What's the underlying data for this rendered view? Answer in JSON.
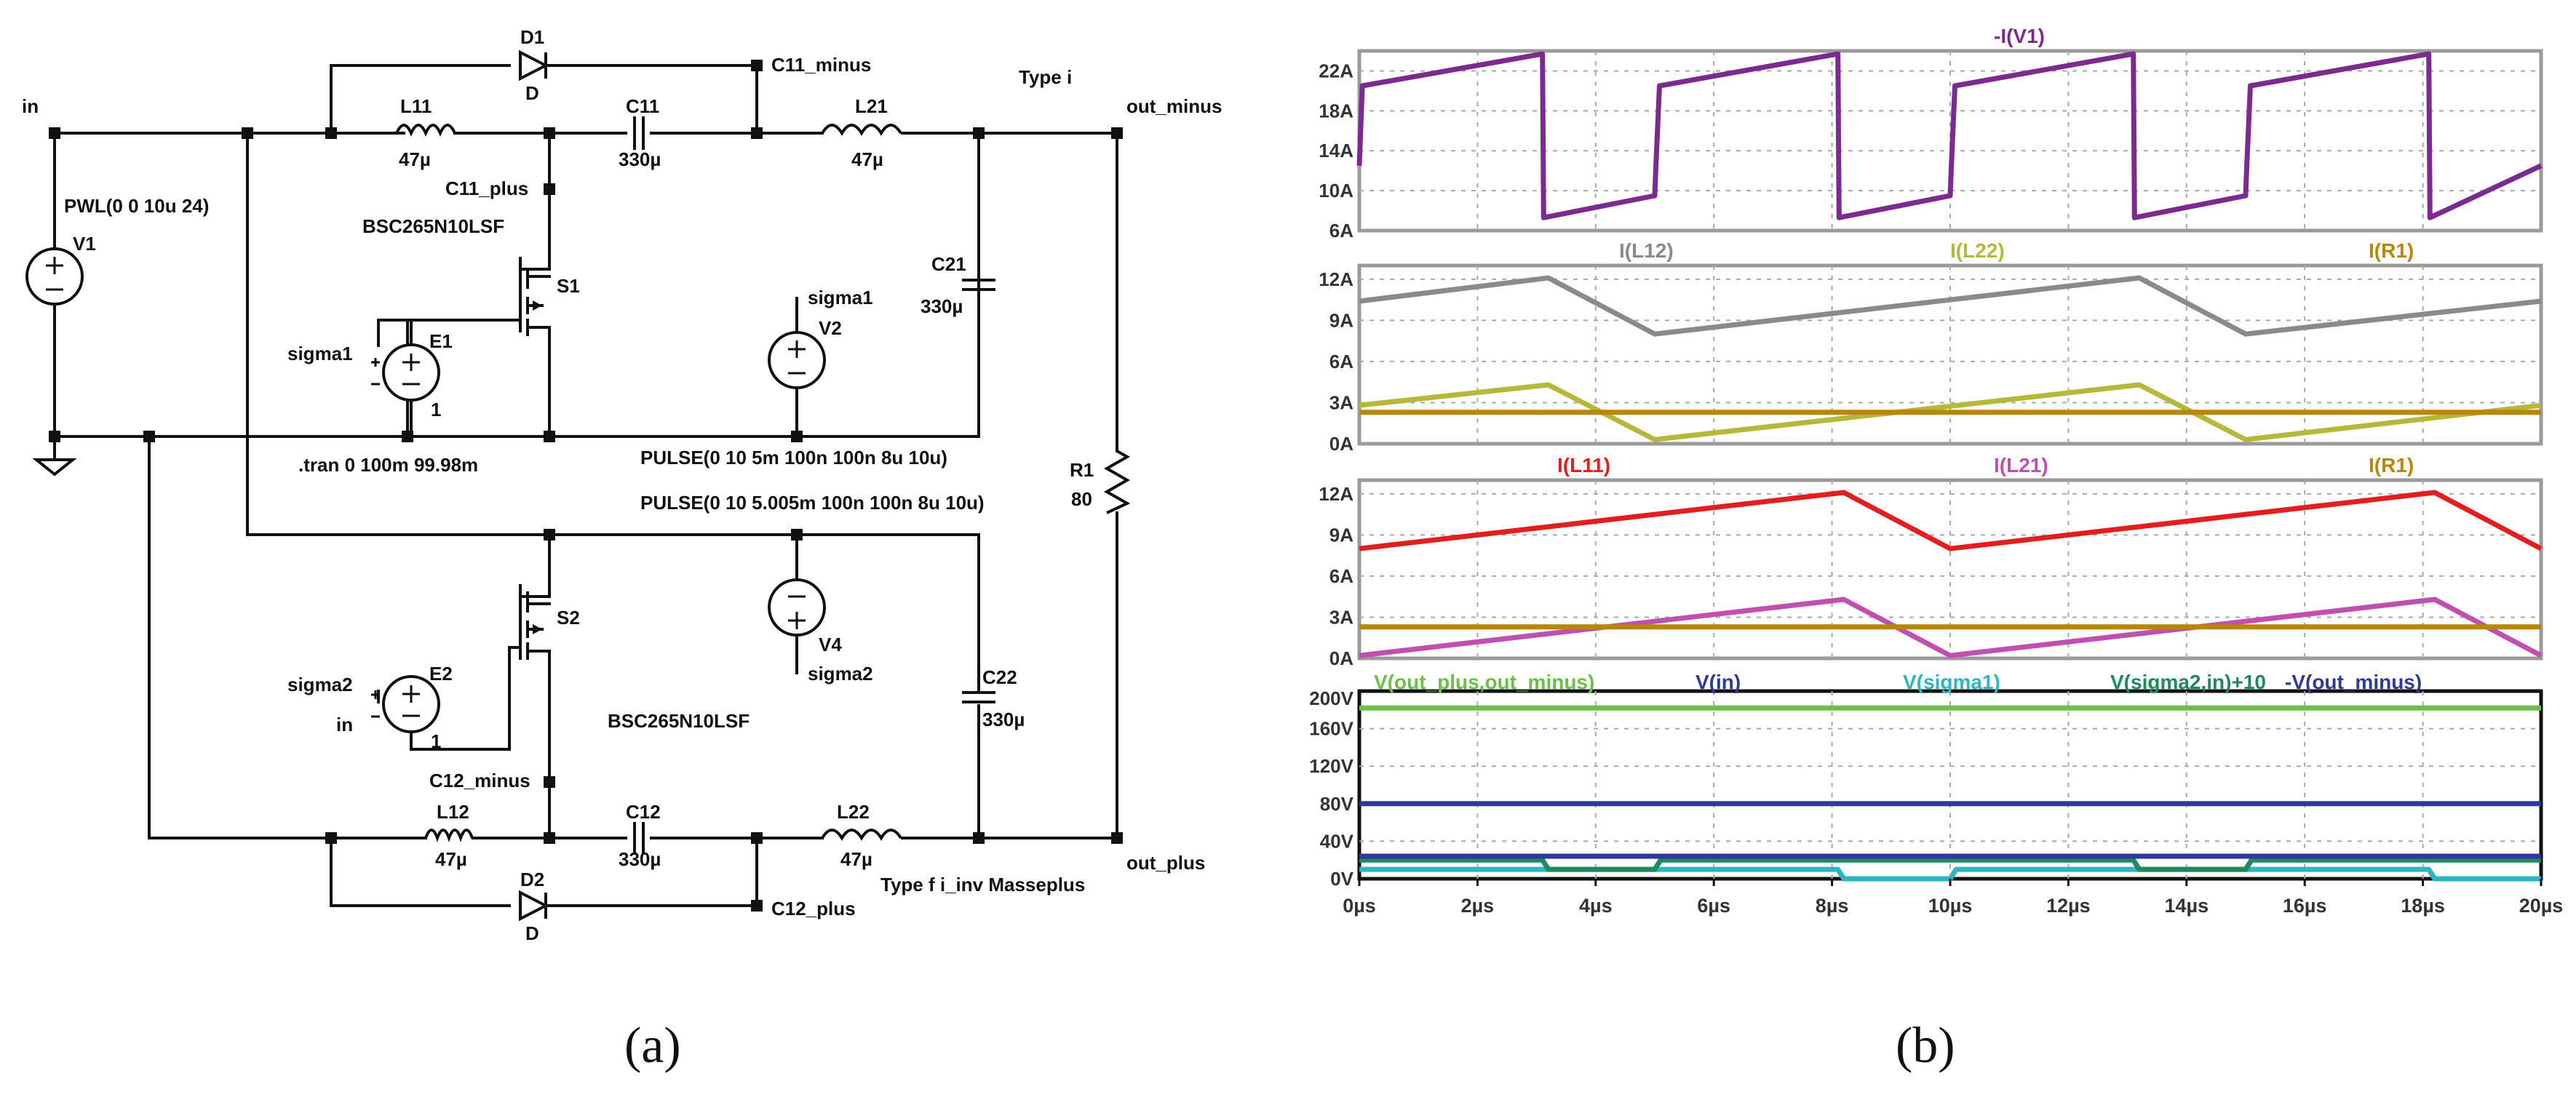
{
  "subfigures": {
    "a": "(a)",
    "b": "(b)"
  },
  "schematic": {
    "net_in": "in",
    "net_out_minus": "out_minus",
    "net_out_plus": "out_plus",
    "net_c11_minus": "C11_minus",
    "net_c11_plus": "C11_plus",
    "net_c12_minus": "C12_minus",
    "net_c12_plus": "C12_plus",
    "net_sigma1_e1": "sigma1",
    "net_sigma1_v2": "sigma1",
    "net_sigma2_e2": "sigma2",
    "net_sigma2_v4": "sigma2",
    "net_in_e2": "in",
    "type_i": "Type i",
    "type_f": "Type f i_inv Masseplus",
    "tran": ".tran 0 100m 99.98m",
    "pwl": "PWL(0 0 10u 24)",
    "pulse1": "PULSE(0 10 5m 100n 100n 8u 10u)",
    "pulse2": "PULSE(0 10 5.005m 100n 100n 8u 10u)",
    "mosfet_s1": "BSC265N10LSF",
    "mosfet_s2": "BSC265N10LSF",
    "components": {
      "V1": "V1",
      "V2": "V2",
      "V4": "V4",
      "E1": "E1",
      "E2": "E2",
      "E1_gain": "1",
      "E2_gain": "1",
      "S1": "S1",
      "S2": "S2",
      "D1": "D1",
      "D1_model": "D",
      "D2": "D2",
      "D2_model": "D",
      "L11": "L11",
      "L11_val": "47µ",
      "L21": "L21",
      "L21_val": "47µ",
      "L12": "L12",
      "L12_val": "47µ",
      "L22": "L22",
      "L22_val": "47µ",
      "C11": "C11",
      "C11_val": "330µ",
      "C21": "C21",
      "C21_val": "330µ",
      "C12": "C12",
      "C12_val": "330µ",
      "C22": "C22",
      "C22_val": "330µ",
      "R1": "R1",
      "R1_val": "80"
    }
  },
  "chart_data": [
    {
      "type": "line",
      "x_range": [
        0,
        20
      ],
      "x_unit": "µs",
      "ylim": [
        6,
        24
      ],
      "yticks": [
        "22A",
        "18A",
        "14A",
        "10A",
        "6A"
      ],
      "yticks_values": [
        22,
        18,
        14,
        10,
        6
      ],
      "grid": true,
      "series": [
        {
          "name": "-I(V1)",
          "color": "#7b2a8f",
          "points": [
            [
              0,
              12.5
            ],
            [
              0.05,
              20.5
            ],
            [
              3.1,
              23.7
            ],
            [
              3.12,
              7.3
            ],
            [
              5.0,
              9.5
            ],
            [
              5.02,
              12.5
            ],
            [
              5.08,
              20.5
            ],
            [
              8.1,
              23.7
            ],
            [
              8.12,
              7.3
            ],
            [
              10.0,
              9.5
            ],
            [
              10.02,
              12.5
            ],
            [
              10.08,
              20.5
            ],
            [
              13.1,
              23.7
            ],
            [
              13.12,
              7.3
            ],
            [
              15.0,
              9.5
            ],
            [
              15.02,
              12.5
            ],
            [
              15.08,
              20.5
            ],
            [
              18.1,
              23.7
            ],
            [
              18.12,
              7.3
            ],
            [
              20,
              12.5
            ]
          ]
        }
      ]
    },
    {
      "type": "line",
      "x_range": [
        0,
        20
      ],
      "ylim": [
        0,
        13
      ],
      "yticks": [
        "12A",
        "9A",
        "6A",
        "3A",
        "0A"
      ],
      "yticks_values": [
        12,
        9,
        6,
        3,
        0
      ],
      "grid": true,
      "series": [
        {
          "name": "I(L12)",
          "color": "#8a8a8a",
          "points": [
            [
              0,
              10.4
            ],
            [
              3.2,
              12.1
            ],
            [
              5.0,
              8.0
            ],
            [
              13.2,
              12.1
            ],
            [
              15.0,
              8.0
            ],
            [
              20,
              10.4
            ]
          ]
        },
        {
          "name": "I(L22)",
          "color": "#b5b83a",
          "points": [
            [
              0,
              2.8
            ],
            [
              3.2,
              4.3
            ],
            [
              5.0,
              0.3
            ],
            [
              13.2,
              4.3
            ],
            [
              15.0,
              0.3
            ],
            [
              20,
              2.8
            ]
          ]
        },
        {
          "name": "I(R1)",
          "color": "#b8860b",
          "points": [
            [
              0,
              2.3
            ],
            [
              20,
              2.3
            ]
          ]
        }
      ]
    },
    {
      "type": "line",
      "x_range": [
        0,
        20
      ],
      "ylim": [
        0,
        13
      ],
      "yticks": [
        "12A",
        "9A",
        "6A",
        "3A",
        "0A"
      ],
      "yticks_values": [
        12,
        9,
        6,
        3,
        0
      ],
      "grid": true,
      "series": [
        {
          "name": "I(L11)",
          "color": "#e02020",
          "points": [
            [
              0,
              8.0
            ],
            [
              8.2,
              12.1
            ],
            [
              10.0,
              8.0
            ],
            [
              18.2,
              12.1
            ],
            [
              20,
              8.0
            ]
          ]
        },
        {
          "name": "I(L21)",
          "color": "#c050b0",
          "points": [
            [
              0,
              0.2
            ],
            [
              8.2,
              4.3
            ],
            [
              10.0,
              0.2
            ],
            [
              18.2,
              4.3
            ],
            [
              20,
              0.2
            ]
          ]
        },
        {
          "name": "I(R1)",
          "color": "#b8860b",
          "points": [
            [
              0,
              2.3
            ],
            [
              20,
              2.3
            ]
          ]
        }
      ]
    },
    {
      "type": "line",
      "x_range": [
        0,
        20
      ],
      "xticks": [
        "0µs",
        "2µs",
        "4µs",
        "6µs",
        "8µs",
        "10µs",
        "12µs",
        "14µs",
        "16µs",
        "18µs",
        "20µs"
      ],
      "xticks_values": [
        0,
        2,
        4,
        6,
        8,
        10,
        12,
        14,
        16,
        18,
        20
      ],
      "ylim": [
        0,
        200
      ],
      "yticks": [
        "200V",
        "160V",
        "120V",
        "80V",
        "40V",
        "0V"
      ],
      "yticks_values": [
        200,
        160,
        120,
        80,
        40,
        0
      ],
      "grid": true,
      "series": [
        {
          "name": "V(out_plus,out_minus)",
          "color": "#6cc04a",
          "points": [
            [
              0,
              182
            ],
            [
              20,
              182
            ]
          ]
        },
        {
          "name": "V(in)",
          "color": "#2e3a9a",
          "points": [
            [
              0,
              80
            ],
            [
              20,
              80
            ]
          ]
        },
        {
          "name": "V(sigma1)",
          "color": "#2bb5c5",
          "points": [
            [
              0,
              10
            ],
            [
              8.1,
              10
            ],
            [
              8.2,
              0
            ],
            [
              10.0,
              0
            ],
            [
              10.1,
              10
            ],
            [
              18.1,
              10
            ],
            [
              18.2,
              0
            ],
            [
              20,
              0
            ]
          ]
        },
        {
          "name": "V(sigma2,in)+10",
          "color": "#1f8a5a",
          "points": [
            [
              0,
              20
            ],
            [
              3.1,
              20
            ],
            [
              3.2,
              10
            ],
            [
              5.0,
              10
            ],
            [
              5.1,
              20
            ],
            [
              13.1,
              20
            ],
            [
              13.2,
              10
            ],
            [
              15.0,
              10
            ],
            [
              15.1,
              20
            ],
            [
              20,
              20
            ]
          ]
        },
        {
          "name": "-V(out_minus)",
          "color": "#2e3a9a",
          "points": [
            [
              0,
              24
            ],
            [
              20,
              24
            ]
          ]
        }
      ]
    }
  ]
}
